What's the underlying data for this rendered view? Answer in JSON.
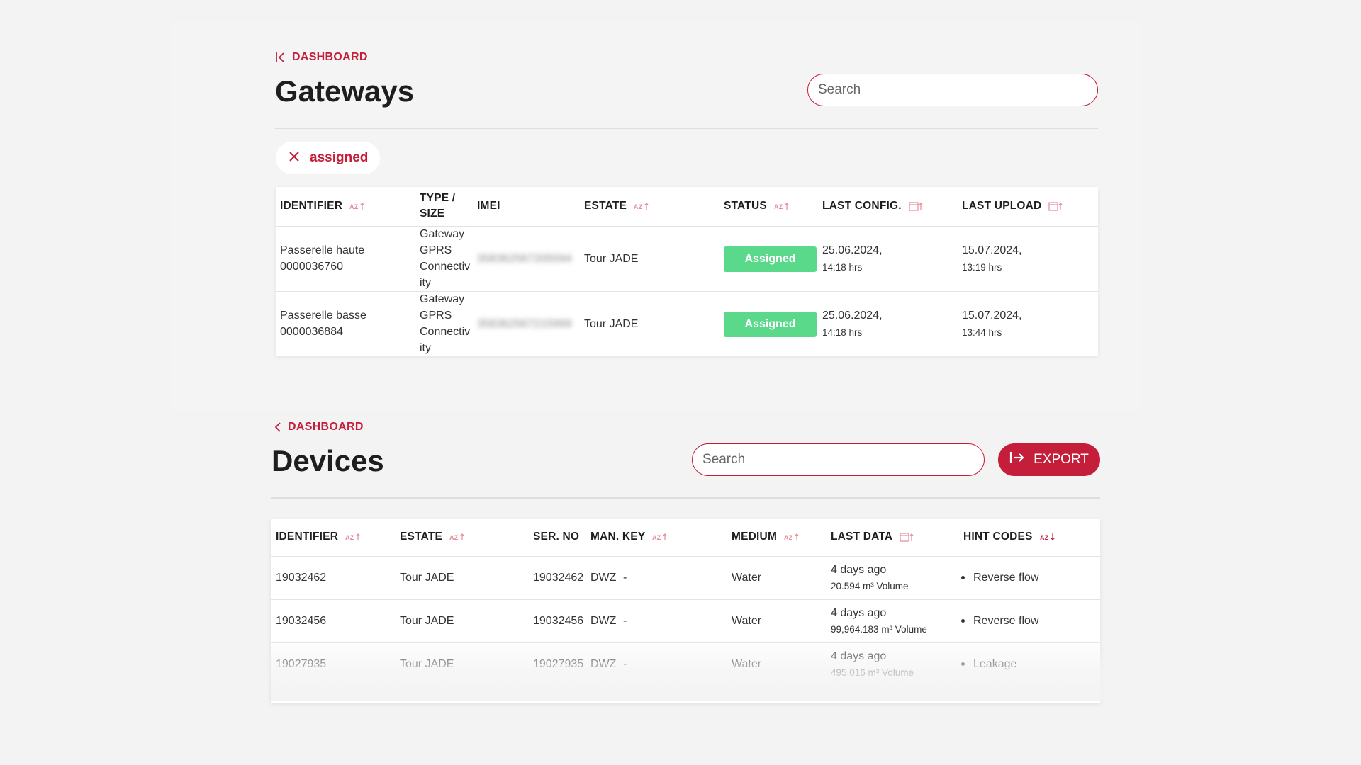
{
  "gateways": {
    "breadcrumb": "DASHBOARD",
    "title": "Gateways",
    "search": {
      "placeholder": "Search",
      "value": ""
    },
    "filter_chip": {
      "label": "assigned"
    },
    "columns": [
      "IDENTIFIER",
      "TYPE / SIZE",
      "IMEI",
      "ESTATE",
      "STATUS",
      "LAST CONFIG.",
      "LAST UPLOAD"
    ],
    "rows": [
      {
        "identifier_name": "Passerelle haute",
        "identifier_id": "0000036760",
        "type_lines": [
          "Gateway",
          "GPRS",
          "Connectiv",
          "ity"
        ],
        "imei": "358362567205594",
        "estate": "Tour JADE",
        "status": "Assigned",
        "last_config_date": "25.06.2024,",
        "last_config_time": "14:18 hrs",
        "last_upload_date": "15.07.2024,",
        "last_upload_time": "13:19 hrs"
      },
      {
        "identifier_name": "Passerelle basse",
        "identifier_id": "0000036884",
        "type_lines": [
          "Gateway",
          "GPRS",
          "Connectiv",
          "ity"
        ],
        "imei": "358362567215999",
        "estate": "Tour JADE",
        "status": "Assigned",
        "last_config_date": "25.06.2024,",
        "last_config_time": "14:18 hrs",
        "last_upload_date": "15.07.2024,",
        "last_upload_time": "13:44 hrs"
      }
    ]
  },
  "devices": {
    "breadcrumb": "DASHBOARD",
    "title": "Devices",
    "search": {
      "placeholder": "Search",
      "value": ""
    },
    "export_label": "EXPORT",
    "columns": [
      "IDENTIFIER",
      "ESTATE",
      "SER. NO",
      "MAN. KEY",
      "MEDIUM",
      "LAST DATA",
      "HINT CODES"
    ],
    "rows": [
      {
        "identifier": "19032462",
        "estate": "Tour JADE",
        "ser_no": "19032462",
        "man_key": "DWZ",
        "extra": "-",
        "medium": "Water",
        "last_data": "4 days ago",
        "volume": "20.594 m³ Volume",
        "hint": "Reverse flow"
      },
      {
        "identifier": "19032456",
        "estate": "Tour JADE",
        "ser_no": "19032456",
        "man_key": "DWZ",
        "extra": "-",
        "medium": "Water",
        "last_data": "4 days ago",
        "volume": "99,964.183 m³ Volume",
        "hint": "Reverse flow"
      },
      {
        "identifier": "19027935",
        "estate": "Tour JADE",
        "ser_no": "19027935",
        "man_key": "DWZ",
        "extra": "-",
        "medium": "Water",
        "last_data": "4 days ago",
        "volume": "495.016 m³ Volume",
        "hint": "Leakage"
      }
    ]
  },
  "colors": {
    "accent": "#c41e3a",
    "status_assigned": "#5ad98a",
    "background": "#f3f3f3"
  },
  "icons": [
    "first-page-chevron-icon",
    "chevron-left-icon",
    "close-icon",
    "sort-az-icon",
    "calendar-sort-icon",
    "export-icon"
  ]
}
